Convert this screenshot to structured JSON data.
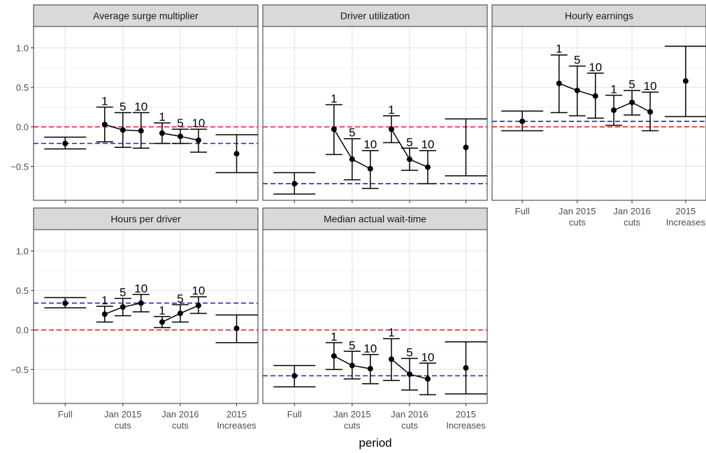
{
  "chart_data": {
    "type": "scatter",
    "xlabel": "period",
    "ylabel": "",
    "ylim": [
      -0.93,
      1.27
    ],
    "yticks": [
      -0.5,
      0.0,
      0.5,
      1.0
    ],
    "ytick_labels": [
      "-0.5",
      "0.0",
      "0.5",
      "1.0"
    ],
    "grid": true,
    "periods": [
      {
        "key": "full",
        "lines": [
          "Full"
        ]
      },
      {
        "key": "jan2015",
        "lines": [
          "Jan 2015",
          "cuts"
        ]
      },
      {
        "key": "jan2016",
        "lines": [
          "Jan 2016",
          "cuts"
        ]
      },
      {
        "key": "inc2015",
        "lines": [
          "2015",
          "Increases"
        ]
      }
    ],
    "reference_lines": [
      {
        "value": 0,
        "color": "#e41a1c",
        "style": "dashed"
      }
    ],
    "baseline_line_color": "#1f1fd6",
    "facets": [
      {
        "title": "Average surge multiplier",
        "baseline": -0.21,
        "full": {
          "estimate": -0.21,
          "lower": -0.28,
          "upper": -0.13
        },
        "jan2015": [
          {
            "label": "1",
            "estimate": 0.03,
            "lower": -0.19,
            "upper": 0.25
          },
          {
            "label": "5",
            "estimate": -0.04,
            "lower": -0.26,
            "upper": 0.18
          },
          {
            "label": "10",
            "estimate": -0.05,
            "lower": -0.27,
            "upper": 0.18
          }
        ],
        "jan2016": [
          {
            "label": "1",
            "estimate": -0.08,
            "lower": -0.21,
            "upper": 0.05
          },
          {
            "label": "5",
            "estimate": -0.12,
            "lower": -0.21,
            "upper": -0.03
          },
          {
            "label": "10",
            "estimate": -0.17,
            "lower": -0.32,
            "upper": -0.03
          }
        ],
        "inc2015": {
          "estimate": -0.34,
          "lower": -0.58,
          "upper": -0.1
        }
      },
      {
        "title": "Driver utilization",
        "baseline": -0.72,
        "full": {
          "estimate": -0.72,
          "lower": -0.85,
          "upper": -0.58
        },
        "jan2015": [
          {
            "label": "1",
            "estimate": -0.03,
            "lower": -0.35,
            "upper": 0.28
          },
          {
            "label": "5",
            "estimate": -0.41,
            "lower": -0.67,
            "upper": -0.15
          },
          {
            "label": "10",
            "estimate": -0.53,
            "lower": -0.78,
            "upper": -0.3
          }
        ],
        "jan2016": [
          {
            "label": "1",
            "estimate": -0.03,
            "lower": -0.2,
            "upper": 0.14
          },
          {
            "label": "5",
            "estimate": -0.41,
            "lower": -0.55,
            "upper": -0.27
          },
          {
            "label": "10",
            "estimate": -0.51,
            "lower": -0.72,
            "upper": -0.3
          }
        ],
        "inc2015": {
          "estimate": -0.26,
          "lower": -0.62,
          "upper": 0.1
        }
      },
      {
        "title": "Hourly earnings",
        "baseline": 0.07,
        "full": {
          "estimate": 0.07,
          "lower": -0.05,
          "upper": 0.2
        },
        "jan2015": [
          {
            "label": "1",
            "estimate": 0.55,
            "lower": 0.18,
            "upper": 0.91
          },
          {
            "label": "5",
            "estimate": 0.46,
            "lower": 0.14,
            "upper": 0.77
          },
          {
            "label": "10",
            "estimate": 0.39,
            "lower": 0.11,
            "upper": 0.68
          }
        ],
        "jan2016": [
          {
            "label": "1",
            "estimate": 0.21,
            "lower": 0.02,
            "upper": 0.4
          },
          {
            "label": "5",
            "estimate": 0.31,
            "lower": 0.15,
            "upper": 0.46
          },
          {
            "label": "10",
            "estimate": 0.19,
            "lower": -0.05,
            "upper": 0.44
          }
        ],
        "inc2015": {
          "estimate": 0.58,
          "lower": 0.13,
          "upper": 1.02
        }
      },
      {
        "title": "Hours per driver",
        "baseline": 0.34,
        "full": {
          "estimate": 0.34,
          "lower": 0.28,
          "upper": 0.41
        },
        "jan2015": [
          {
            "label": "1",
            "estimate": 0.2,
            "lower": 0.1,
            "upper": 0.3
          },
          {
            "label": "5",
            "estimate": 0.29,
            "lower": 0.18,
            "upper": 0.4
          },
          {
            "label": "10",
            "estimate": 0.34,
            "lower": 0.23,
            "upper": 0.45
          }
        ],
        "jan2016": [
          {
            "label": "1",
            "estimate": 0.1,
            "lower": 0.03,
            "upper": 0.17
          },
          {
            "label": "5",
            "estimate": 0.21,
            "lower": 0.1,
            "upper": 0.32
          },
          {
            "label": "10",
            "estimate": 0.31,
            "lower": 0.21,
            "upper": 0.42
          }
        ],
        "inc2015": {
          "estimate": 0.02,
          "lower": -0.16,
          "upper": 0.19
        }
      },
      {
        "title": "Median actual wait-time",
        "baseline": -0.58,
        "full": {
          "estimate": -0.58,
          "lower": -0.72,
          "upper": -0.45
        },
        "jan2015": [
          {
            "label": "1",
            "estimate": -0.33,
            "lower": -0.5,
            "upper": -0.16
          },
          {
            "label": "5",
            "estimate": -0.45,
            "lower": -0.62,
            "upper": -0.27
          },
          {
            "label": "10",
            "estimate": -0.49,
            "lower": -0.68,
            "upper": -0.31
          }
        ],
        "jan2016": [
          {
            "label": "1",
            "estimate": -0.37,
            "lower": -0.64,
            "upper": -0.11
          },
          {
            "label": "5",
            "estimate": -0.56,
            "lower": -0.76,
            "upper": -0.36
          },
          {
            "label": "10",
            "estimate": -0.62,
            "lower": -0.82,
            "upper": -0.42
          }
        ],
        "inc2015": {
          "estimate": -0.48,
          "lower": -0.81,
          "upper": -0.15
        }
      }
    ]
  }
}
